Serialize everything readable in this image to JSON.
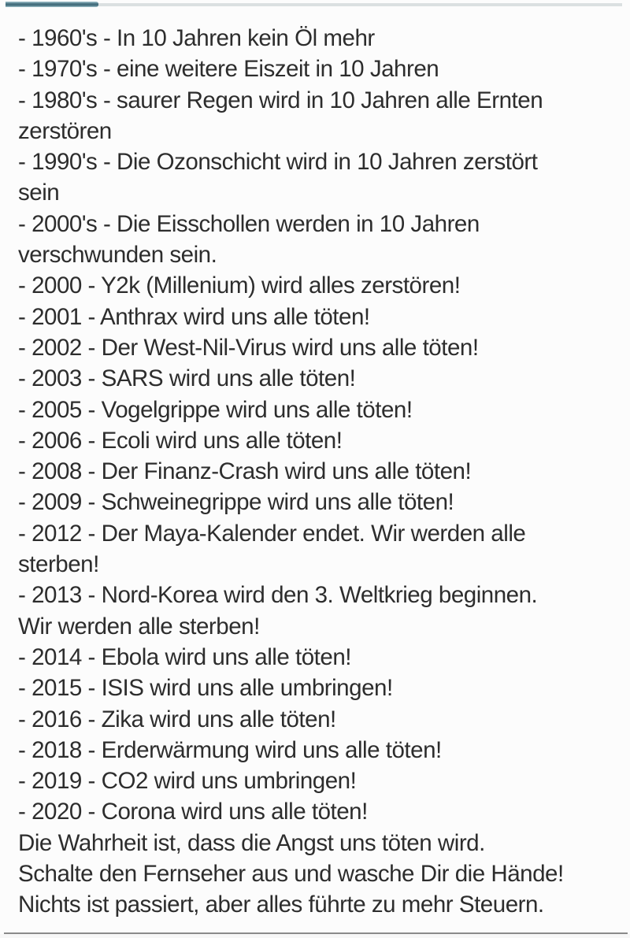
{
  "colors": {
    "background": "#fcfcfc",
    "text": "#2d2d2d",
    "progress-fill": "#45707f",
    "progress-fill-light": "#a9c9d2",
    "progress-track": "#dbe0e1",
    "divider": "#8a8a8a",
    "footer-bg": "#f7f7f7"
  },
  "top_bar": {
    "progress_percent": 15
  },
  "content": {
    "lines": [
      "- 1960's - In 10 Jahren kein Öl mehr",
      "- 1970's - eine weitere Eiszeit in 10 Jahren",
      "- 1980's - saurer Regen wird in 10 Jahren alle Ernten",
      "zerstören",
      "- 1990's - Die Ozonschicht wird in 10 Jahren zerstört",
      "sein",
      "- 2000's - Die Eisschollen werden in 10 Jahren",
      "verschwunden sein.",
      "- 2000 - Y2k (Millenium) wird alles zerstören!",
      "- 2001 - Anthrax wird uns alle töten!",
      "- 2002 - Der West-Nil-Virus wird uns alle töten!",
      "- 2003 - SARS wird uns alle töten!",
      "- 2005 - Vogelgrippe wird uns alle töten!",
      "- 2006 - Ecoli wird uns alle töten!",
      "- 2008 - Der Finanz-Crash wird uns alle töten!",
      "- 2009 - Schweinegrippe wird uns alle töten!",
      "- 2012 - Der Maya-Kalender endet. Wir werden alle",
      "sterben!",
      "- 2013 - Nord-Korea wird den 3. Weltkrieg beginnen.",
      "Wir werden alle sterben!",
      "- 2014 - Ebola wird uns alle töten!",
      "- 2015 - ISIS wird uns alle umbringen!",
      "- 2016 - Zika wird uns alle töten!",
      "- 2018 - Erderwärmung wird uns alle töten!",
      "- 2019 - CO2 wird uns umbringen!",
      "- 2020 - Corona wird uns alle töten!",
      "Die Wahrheit ist, dass die Angst uns töten wird.",
      "Schalte den Fernseher aus und wasche Dir die Hände!",
      "Nichts ist passiert, aber alles führte zu mehr Steuern."
    ]
  }
}
